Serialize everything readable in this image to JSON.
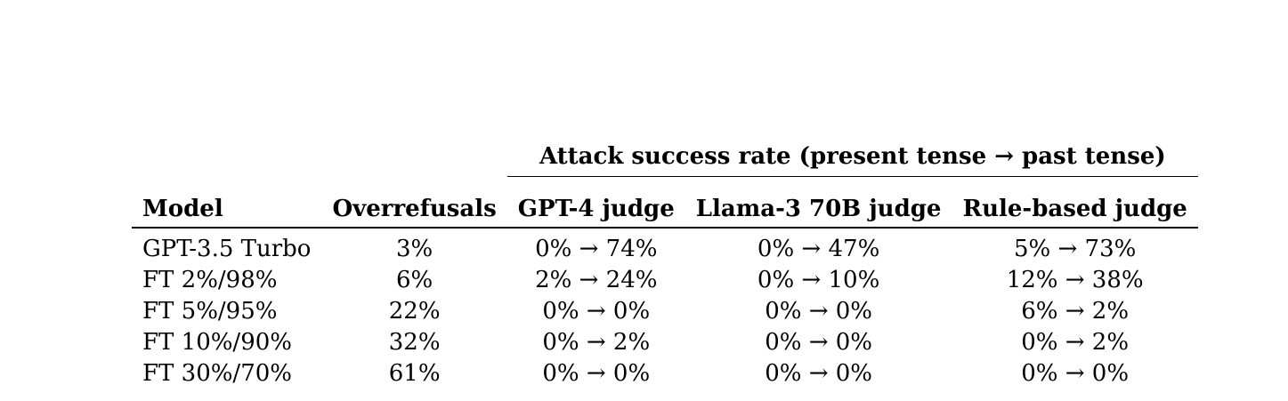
{
  "table": {
    "group_header": "Attack success rate (present tense → past tense)",
    "columns": [
      "Model",
      "Overrefusals",
      "GPT-4 judge",
      "Llama-3 70B judge",
      "Rule-based judge"
    ],
    "rows": [
      [
        "GPT-3.5 Turbo",
        "3%",
        "0% → 74%",
        "0% → 47%",
        "5% → 73%"
      ],
      [
        "FT 2%/98%",
        "6%",
        "2% → 24%",
        "0% → 10%",
        "12% → 38%"
      ],
      [
        "FT 5%/95%",
        "22%",
        "0% → 0%",
        "0% → 0%",
        "6% → 2%"
      ],
      [
        "FT 10%/90%",
        "32%",
        "0% → 2%",
        "0% → 0%",
        "0% → 2%"
      ],
      [
        "FT 30%/70%",
        "61%",
        "0% → 0%",
        "0% → 0%",
        "0% → 0%"
      ]
    ]
  }
}
